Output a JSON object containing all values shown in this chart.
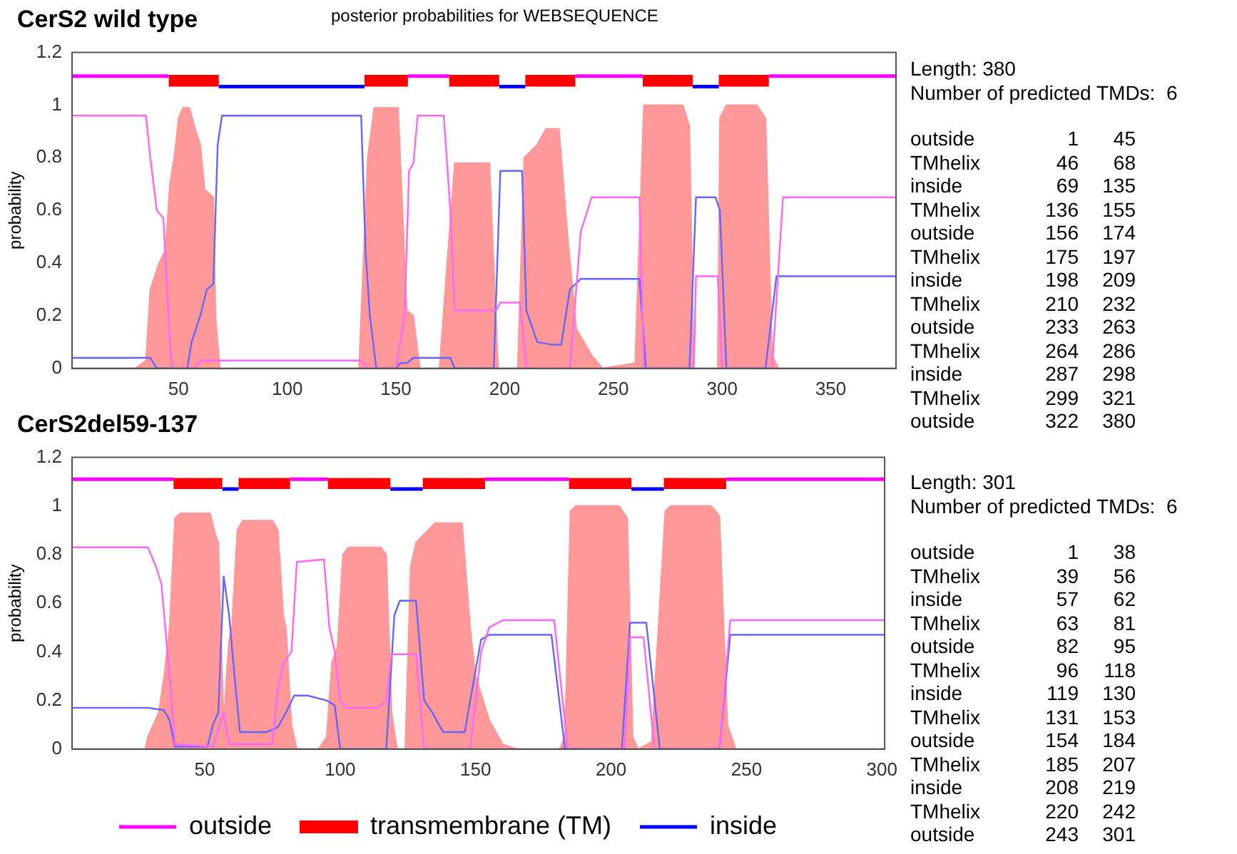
{
  "chart_data": [
    {
      "type": "line",
      "title": "CerS2 wild type",
      "subtitle": "posterior probabilities for WEBSEQUENCE",
      "ylabel": "probability",
      "xlim": [
        1,
        380
      ],
      "xticks": [
        50,
        100,
        150,
        200,
        250,
        300,
        350
      ],
      "ylim": [
        0,
        1.2
      ],
      "yticks": [
        0,
        0.2,
        0.4,
        0.6,
        0.8,
        1,
        1.2
      ],
      "grid": false,
      "legend": false,
      "marker": "none",
      "series": [
        {
          "type": "area",
          "color": "#ff9999",
          "x": [
            1,
            30,
            35,
            37,
            41,
            44,
            46,
            48,
            50,
            52,
            55,
            58,
            60,
            62,
            66,
            67,
            69,
            133,
            137,
            140,
            151,
            155,
            158,
            161,
            170,
            174,
            177,
            193,
            197,
            206,
            209,
            215,
            219,
            225,
            229,
            233,
            240,
            245,
            260,
            264,
            282,
            285,
            287,
            298,
            299,
            302,
            316,
            320,
            323,
            326,
            380
          ],
          "values": [
            0,
            0,
            0.03,
            0.3,
            0.4,
            0.45,
            0.7,
            0.8,
            0.95,
            0.99,
            0.99,
            0.9,
            0.85,
            0.68,
            0.65,
            0.2,
            0,
            0,
            0.8,
            0.99,
            0.99,
            0.22,
            0.2,
            0,
            0,
            0.45,
            0.78,
            0.78,
            0,
            0,
            0.8,
            0.85,
            0.91,
            0.91,
            0.5,
            0.15,
            0.05,
            0,
            0.02,
            1,
            1,
            0.92,
            0,
            0,
            0.95,
            1,
            1,
            0.95,
            0.05,
            0,
            0
          ]
        },
        {
          "color": "#ff66ff",
          "x": [
            1,
            35,
            37,
            40,
            43,
            46,
            47,
            57,
            60,
            134,
            137,
            150,
            154,
            156,
            158,
            160,
            172,
            175,
            177,
            196,
            198,
            207,
            210,
            230,
            235,
            240,
            262,
            264,
            287,
            288,
            298,
            300,
            323,
            328,
            380
          ],
          "values": [
            0.96,
            0.96,
            0.8,
            0.6,
            0.57,
            0.1,
            0,
            0,
            0.03,
            0.03,
            0,
            0,
            0.2,
            0.75,
            0.78,
            0.96,
            0.96,
            0.6,
            0.22,
            0.22,
            0.25,
            0.25,
            0,
            0,
            0.52,
            0.65,
            0.65,
            0,
            0,
            0.35,
            0.35,
            0,
            0,
            0.65,
            0.65
          ]
        },
        {
          "color": "#6666ff",
          "x": [
            1,
            37,
            40,
            54,
            56,
            60,
            63,
            66,
            68,
            70,
            134,
            136,
            138,
            141,
            150,
            152,
            155,
            158,
            175,
            177,
            195,
            198,
            208,
            210,
            215,
            222,
            226,
            230,
            235,
            262,
            265,
            285,
            288,
            297,
            299,
            302,
            320,
            325,
            380
          ],
          "values": [
            0.04,
            0.04,
            0,
            0,
            0.1,
            0.2,
            0.3,
            0.32,
            0.85,
            0.96,
            0.96,
            0.45,
            0.2,
            0,
            0,
            0.02,
            0.02,
            0.04,
            0.04,
            0,
            0,
            0.75,
            0.75,
            0.22,
            0.1,
            0.09,
            0.09,
            0.3,
            0.34,
            0.34,
            0,
            0,
            0.65,
            0.65,
            0.6,
            0,
            0,
            0.35,
            0.35
          ]
        },
        {
          "color": "#ff00ff",
          "x": [
            1,
            45.5,
            100,
            155.5,
            174.5,
            200,
            232.5,
            263.5,
            290,
            321.5,
            380
          ],
          "values": [
            1.11,
            1.11,
            null,
            1.11,
            1.11,
            null,
            1.11,
            1.11,
            null,
            1.11,
            1.11
          ]
        },
        {
          "color": "#0000ff",
          "x": [
            68.5,
            135.5,
            160,
            197.5,
            209.5,
            250,
            286.5,
            298.5
          ],
          "values": [
            1.07,
            1.07,
            null,
            1.07,
            1.07,
            null,
            1.07,
            1.07
          ]
        },
        {
          "color": "#ff0000",
          "x": [
            45.5,
            68.5,
            100,
            135.5,
            155.5,
            165,
            174.5,
            197.5,
            203,
            209.5,
            232.5,
            250,
            263.5,
            286.5,
            292,
            298.5,
            321.5
          ],
          "values": [
            1.09,
            1.09,
            null,
            1.09,
            1.09,
            null,
            1.09,
            1.09,
            null,
            1.09,
            1.09,
            null,
            1.09,
            1.09,
            null,
            1.09,
            1.09
          ],
          "lower": [
            1.07,
            1.07,
            null,
            1.07,
            1.07,
            null,
            1.07,
            1.07,
            null,
            1.07,
            1.07,
            null,
            1.07,
            1.07,
            null,
            1.07,
            1.07
          ],
          "upper": [
            1.115,
            1.115,
            null,
            1.115,
            1.115,
            null,
            1.115,
            1.115,
            null,
            1.115,
            1.115,
            null,
            1.115,
            1.115,
            null,
            1.115,
            1.115
          ]
        }
      ]
    },
    {
      "type": "line",
      "title": "CerS2del59-137",
      "ylabel": "probability",
      "xlim": [
        1,
        301
      ],
      "xticks": [
        50,
        100,
        150,
        200,
        250,
        300
      ],
      "ylim": [
        0,
        1.2
      ],
      "yticks": [
        0,
        0.2,
        0.4,
        0.6,
        0.8,
        1,
        1.2
      ],
      "grid": false,
      "legend": "bottom",
      "marker": "none",
      "series": [
        {
          "type": "area",
          "color": "#ff9999",
          "x": [
            1,
            28,
            29,
            31,
            33,
            35,
            37,
            39,
            41,
            52,
            54,
            55,
            57,
            58,
            59,
            60,
            62,
            64,
            75,
            77,
            79,
            80,
            82,
            84,
            92,
            95,
            97,
            99,
            101,
            103,
            115,
            117,
            119,
            121,
            124,
            126,
            128,
            135,
            145,
            148,
            150,
            155,
            160,
            165,
            181,
            183,
            185,
            187,
            203,
            206,
            208,
            210,
            215,
            218,
            220,
            222,
            237,
            240,
            243,
            246,
            301
          ],
          "values": [
            0,
            0,
            0.05,
            0.1,
            0.15,
            0.3,
            0.5,
            0.95,
            0.97,
            0.97,
            0.88,
            0.85,
            0.1,
            0.3,
            0.45,
            0.5,
            0.9,
            0.94,
            0.94,
            0.9,
            0.55,
            0.5,
            0.1,
            0,
            0,
            0.05,
            0.36,
            0.42,
            0.8,
            0.83,
            0.83,
            0.8,
            0.15,
            0,
            0,
            0.75,
            0.85,
            0.93,
            0.93,
            0.5,
            0.3,
            0.12,
            0.02,
            0,
            0,
            0.05,
            0.98,
            1,
            1,
            0.95,
            0.05,
            0,
            0.03,
            0.6,
            0.98,
            1,
            1,
            0.96,
            0.1,
            0,
            0
          ]
        },
        {
          "color": "#ff66ff",
          "x": [
            1,
            29,
            32,
            34,
            37,
            39,
            53,
            57,
            59,
            75,
            77,
            79,
            82,
            84,
            94,
            96,
            98,
            100,
            102,
            114,
            117,
            119,
            128,
            131,
            148,
            152,
            155,
            160,
            179,
            184,
            205,
            207,
            212,
            216,
            240,
            244,
            301
          ],
          "values": [
            0.83,
            0.83,
            0.75,
            0.68,
            0.3,
            0.02,
            0.01,
            0.15,
            0.02,
            0.02,
            0.25,
            0.35,
            0.4,
            0.77,
            0.78,
            0.5,
            0.4,
            0.2,
            0.17,
            0.17,
            0.2,
            0.39,
            0.39,
            0,
            0,
            0.4,
            0.5,
            0.53,
            0.53,
            0,
            0,
            0.46,
            0.46,
            0,
            0,
            0.53,
            0.53
          ]
        },
        {
          "color": "#6666ff",
          "x": [
            1,
            29,
            35,
            37,
            39,
            51,
            53,
            55,
            57,
            59,
            61,
            63,
            73,
            77,
            80,
            83,
            88,
            95,
            98,
            100,
            117,
            120,
            122,
            128,
            131,
            134,
            138,
            146,
            148,
            152,
            155,
            178,
            183,
            204,
            207,
            213,
            218,
            240,
            244,
            301
          ],
          "values": [
            0.17,
            0.17,
            0.16,
            0.12,
            0.01,
            0.01,
            0.1,
            0.15,
            0.71,
            0.55,
            0.3,
            0.07,
            0.07,
            0.09,
            0.15,
            0.22,
            0.22,
            0.2,
            0.18,
            0,
            0,
            0.55,
            0.61,
            0.61,
            0.2,
            0.15,
            0.07,
            0.07,
            0.2,
            0.45,
            0.47,
            0.47,
            0,
            0,
            0.52,
            0.52,
            0,
            0,
            0.47,
            0.47
          ]
        },
        {
          "name": "outside",
          "color": "#ff00ff",
          "x": [
            1,
            38.5,
            60,
            81.5,
            95.5,
            120,
            153.5,
            184.5,
            230,
            242.5,
            301
          ],
          "values": [
            1.11,
            1.11,
            null,
            1.11,
            1.11,
            null,
            1.11,
            1.11,
            null,
            1.11,
            1.11
          ]
        },
        {
          "name": "transmembrane (TM)",
          "color": "#ff0000",
          "x": [
            38.5,
            56.5,
            60,
            62.5,
            81.5,
            90,
            95.5,
            118.5,
            125,
            130.5,
            153.5,
            170,
            184.5,
            207.5,
            212,
            219.5,
            242.5
          ],
          "values": [
            1.09,
            1.09,
            null,
            1.09,
            1.09,
            null,
            1.09,
            1.09,
            null,
            1.09,
            1.09,
            null,
            1.09,
            1.09,
            null,
            1.09,
            1.09
          ],
          "lower": [
            1.07,
            1.07,
            null,
            1.07,
            1.07,
            null,
            1.07,
            1.07,
            null,
            1.07,
            1.07,
            null,
            1.07,
            1.07,
            null,
            1.07,
            1.07
          ],
          "upper": [
            1.115,
            1.115,
            null,
            1.115,
            1.115,
            null,
            1.115,
            1.115,
            null,
            1.115,
            1.115,
            null,
            1.115,
            1.115,
            null,
            1.115,
            1.115
          ]
        },
        {
          "name": "inside",
          "color": "#0000ff",
          "x": [
            56.5,
            62.5,
            90,
            118.5,
            130.5,
            170,
            207.5,
            219.5
          ],
          "values": [
            1.07,
            1.07,
            null,
            1.07,
            1.07,
            null,
            1.07,
            1.07
          ]
        }
      ]
    },
    {
      "type": "other",
      "annotations": [
        "Length: 380",
        "Number of predicted TMDs:  6",
        "outside 1 45",
        "TMhelix 46 68",
        "inside 69 135",
        "TMhelix 136 155",
        "outside 156 174",
        "TMhelix 175 197",
        "inside 198 209",
        "TMhelix 210 232",
        "outside 233 263",
        "TMhelix 264 286",
        "inside 287 298",
        "TMhelix 299 321",
        "outside 322 380"
      ]
    },
    {
      "type": "other",
      "annotations": [
        "Length: 301",
        "Number of predicted TMDs:  6",
        "outside 1 38",
        "TMhelix 39 56",
        "inside 57 62",
        "TMhelix 63 81",
        "outside 82 95",
        "TMhelix 96 118",
        "inside 119 130",
        "TMhelix 131 153",
        "outside 154 184",
        "TMhelix 185 207",
        "inside 208 219",
        "TMhelix 220 242",
        "outside 243 301"
      ]
    }
  ]
}
